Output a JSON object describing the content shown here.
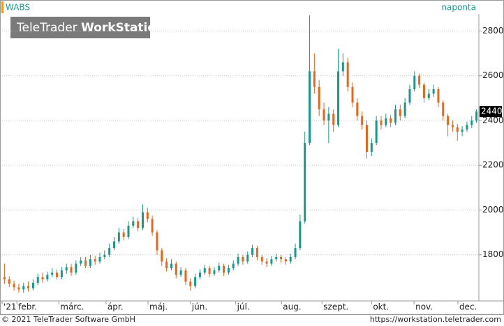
{
  "chart_data": {
    "type": "candlestick",
    "symbol": "WABS",
    "period": "naponta",
    "watermark": {
      "light": "TeleTrader",
      "bold": "WorkStation"
    },
    "up_color": "#17998a",
    "down_color": "#e8661c",
    "open": [
      1700,
      1690,
      1670,
      1655,
      1645,
      1660,
      1650,
      1675,
      1700,
      1690,
      1710,
      1720,
      1700,
      1730,
      1745,
      1720,
      1760,
      1775,
      1750,
      1780,
      1770,
      1790,
      1800,
      1830,
      1860,
      1900,
      1880,
      1930,
      1950,
      1920,
      1990,
      1960,
      1900,
      1820,
      1770,
      1740,
      1760,
      1710,
      1730,
      1680,
      1660,
      1700,
      1720,
      1740,
      1715,
      1730,
      1750,
      1720,
      1740,
      1760,
      1790,
      1770,
      1800,
      1830,
      1790,
      1770,
      1760,
      1780,
      1790,
      1780,
      1770,
      1790,
      1830,
      1950,
      2300,
      2620,
      2550,
      2450,
      2400,
      2430,
      2380,
      2620,
      2660,
      2550,
      2480,
      2420,
      2380,
      2260,
      2300,
      2400,
      2380,
      2410,
      2390,
      2450,
      2420,
      2480,
      2540,
      2600,
      2560,
      2500,
      2520,
      2540,
      2480,
      2420,
      2380,
      2370,
      2350,
      2360,
      2380,
      2400
    ],
    "high": [
      1760,
      1705,
      1685,
      1670,
      1675,
      1680,
      1690,
      1715,
      1720,
      1725,
      1740,
      1735,
      1745,
      1760,
      1760,
      1775,
      1790,
      1790,
      1800,
      1795,
      1810,
      1820,
      1850,
      1880,
      1920,
      1915,
      1950,
      1970,
      1965,
      2025,
      2010,
      1975,
      1910,
      1830,
      1785,
      1780,
      1770,
      1745,
      1740,
      1695,
      1715,
      1735,
      1755,
      1750,
      1745,
      1765,
      1760,
      1755,
      1775,
      1805,
      1800,
      1815,
      1845,
      1840,
      1800,
      1785,
      1795,
      1805,
      1800,
      1790,
      1805,
      1850,
      1980,
      2350,
      2870,
      2700,
      2580,
      2480,
      2460,
      2450,
      2720,
      2700,
      2680,
      2570,
      2500,
      2440,
      2400,
      2320,
      2420,
      2420,
      2430,
      2425,
      2470,
      2470,
      2500,
      2560,
      2620,
      2610,
      2570,
      2540,
      2560,
      2550,
      2490,
      2430,
      2400,
      2385,
      2375,
      2395,
      2420,
      2450
    ],
    "low": [
      1670,
      1655,
      1640,
      1630,
      1630,
      1635,
      1640,
      1665,
      1675,
      1680,
      1700,
      1690,
      1690,
      1715,
      1705,
      1710,
      1750,
      1740,
      1740,
      1755,
      1760,
      1780,
      1790,
      1820,
      1850,
      1865,
      1870,
      1920,
      1905,
      1910,
      1945,
      1885,
      1800,
      1750,
      1725,
      1730,
      1695,
      1700,
      1665,
      1640,
      1650,
      1690,
      1710,
      1700,
      1705,
      1720,
      1705,
      1710,
      1730,
      1750,
      1755,
      1760,
      1790,
      1775,
      1755,
      1745,
      1750,
      1770,
      1765,
      1755,
      1760,
      1780,
      1820,
      1940,
      2290,
      2520,
      2420,
      2380,
      2300,
      2350,
      2370,
      2600,
      2530,
      2460,
      2400,
      2360,
      2230,
      2240,
      2290,
      2360,
      2370,
      2370,
      2380,
      2400,
      2410,
      2470,
      2530,
      2545,
      2480,
      2490,
      2505,
      2460,
      2400,
      2330,
      2350,
      2310,
      2330,
      2350,
      2365,
      2390
    ],
    "close": [
      1690,
      1670,
      1655,
      1645,
      1660,
      1650,
      1675,
      1700,
      1690,
      1710,
      1720,
      1700,
      1730,
      1745,
      1720,
      1760,
      1775,
      1750,
      1780,
      1770,
      1790,
      1800,
      1830,
      1860,
      1900,
      1880,
      1930,
      1950,
      1920,
      1990,
      1960,
      1900,
      1820,
      1770,
      1740,
      1760,
      1710,
      1730,
      1680,
      1660,
      1700,
      1720,
      1740,
      1715,
      1730,
      1750,
      1720,
      1740,
      1760,
      1790,
      1770,
      1800,
      1830,
      1790,
      1770,
      1760,
      1780,
      1790,
      1780,
      1770,
      1790,
      1830,
      1950,
      2300,
      2620,
      2550,
      2450,
      2400,
      2430,
      2380,
      2620,
      2660,
      2550,
      2480,
      2420,
      2380,
      2260,
      2300,
      2400,
      2380,
      2410,
      2390,
      2450,
      2420,
      2480,
      2540,
      2600,
      2560,
      2500,
      2520,
      2540,
      2480,
      2420,
      2380,
      2370,
      2350,
      2360,
      2380,
      2400,
      2440
    ],
    "xlim": [
      0,
      100
    ],
    "xticks": [
      {
        "value": 0,
        "label": "'21"
      },
      {
        "value": 3.1,
        "label": "febr."
      },
      {
        "value": 11.9,
        "label": "márc."
      },
      {
        "value": 21.8,
        "label": "ápr."
      },
      {
        "value": 30.6,
        "label": "máj."
      },
      {
        "value": 39.5,
        "label": "jún."
      },
      {
        "value": 49,
        "label": "júl."
      },
      {
        "value": 58.6,
        "label": "aug."
      },
      {
        "value": 67.1,
        "label": "szept."
      },
      {
        "value": 77.5,
        "label": "okt."
      },
      {
        "value": 86.4,
        "label": "nov."
      },
      {
        "value": 95.6,
        "label": "dec."
      }
    ],
    "ylim": [
      1600,
      2870
    ],
    "yticks": [
      1800,
      2000,
      2200,
      2400,
      2600,
      2800
    ],
    "grid": true
  },
  "footer": {
    "copyright": "© 2021 TeleTrader Software GmbH",
    "url": "https://workstation.teletrader.com"
  }
}
